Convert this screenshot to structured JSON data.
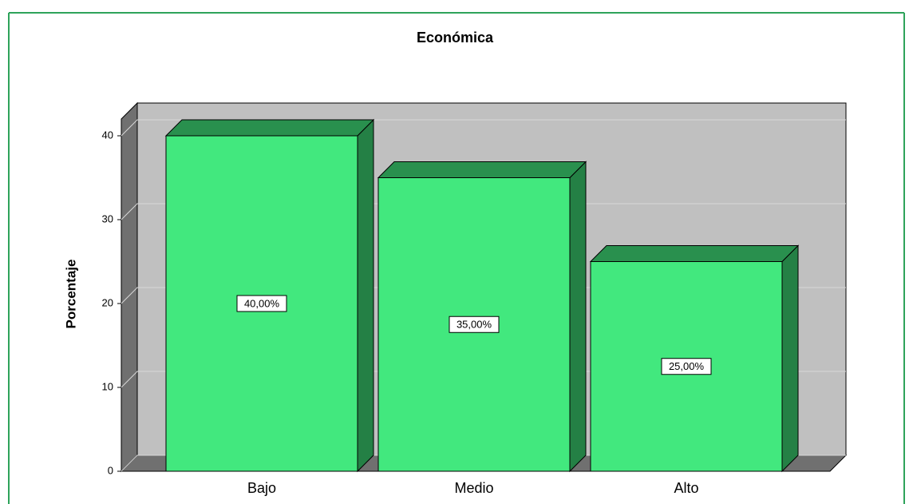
{
  "chart_data": {
    "type": "bar3d",
    "title": "Económica",
    "y_label": "Porcentaje",
    "categories": [
      "Bajo",
      "Medio",
      "Alto"
    ],
    "values": [
      40,
      35,
      25
    ],
    "value_labels": [
      "40,00%",
      "35,00%",
      "25,00%"
    ],
    "color": "#42e87e",
    "ylim": [
      0,
      42
    ],
    "yticks": [
      0,
      10,
      20,
      30,
      40
    ],
    "grid": true
  }
}
